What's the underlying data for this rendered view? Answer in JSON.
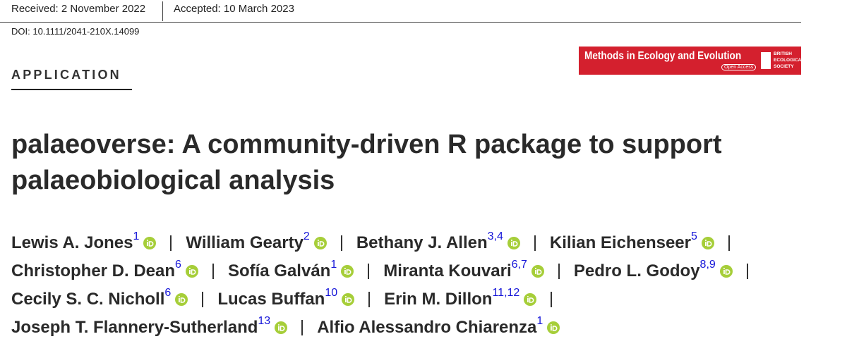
{
  "header": {
    "received": "Received: 2 November 2022",
    "accepted": "Accepted: 10 March 2023",
    "doi": "DOI: 10.1111/2041-210X.14099"
  },
  "journal": {
    "name": "Methods in Ecology and Evolution",
    "access": "Open Access",
    "society": [
      "BRITISH",
      "ECOLOGICAL",
      "SOCIETY"
    ]
  },
  "article_type": "APPLICATION",
  "title": [
    "palaeoverse: A community-driven R package to support",
    "palaeobiological analysis"
  ],
  "authors": [
    [
      {
        "name": "Lewis A. Jones",
        "aff": "1"
      },
      {
        "name": "William Gearty",
        "aff": "2"
      },
      {
        "name": "Bethany J. Allen",
        "aff": "3,4"
      },
      {
        "name": "Kilian Eichenseer",
        "aff": "5"
      }
    ],
    [
      {
        "name": "Christopher D. Dean",
        "aff": "6"
      },
      {
        "name": "Sofía Galván",
        "aff": "1"
      },
      {
        "name": "Miranta Kouvari",
        "aff": "6,7"
      },
      {
        "name": "Pedro L. Godoy",
        "aff": "8,9"
      }
    ],
    [
      {
        "name": "Cecily S. C. Nicholl",
        "aff": "6"
      },
      {
        "name": "Lucas Buffan",
        "aff": "10"
      },
      {
        "name": "Erin M. Dillon",
        "aff": "11,12"
      }
    ],
    [
      {
        "name": "Joseph T. Flannery-Sutherland",
        "aff": "13"
      },
      {
        "name": "Alfio Alessandro Chiarenza",
        "aff": "1"
      }
    ]
  ]
}
